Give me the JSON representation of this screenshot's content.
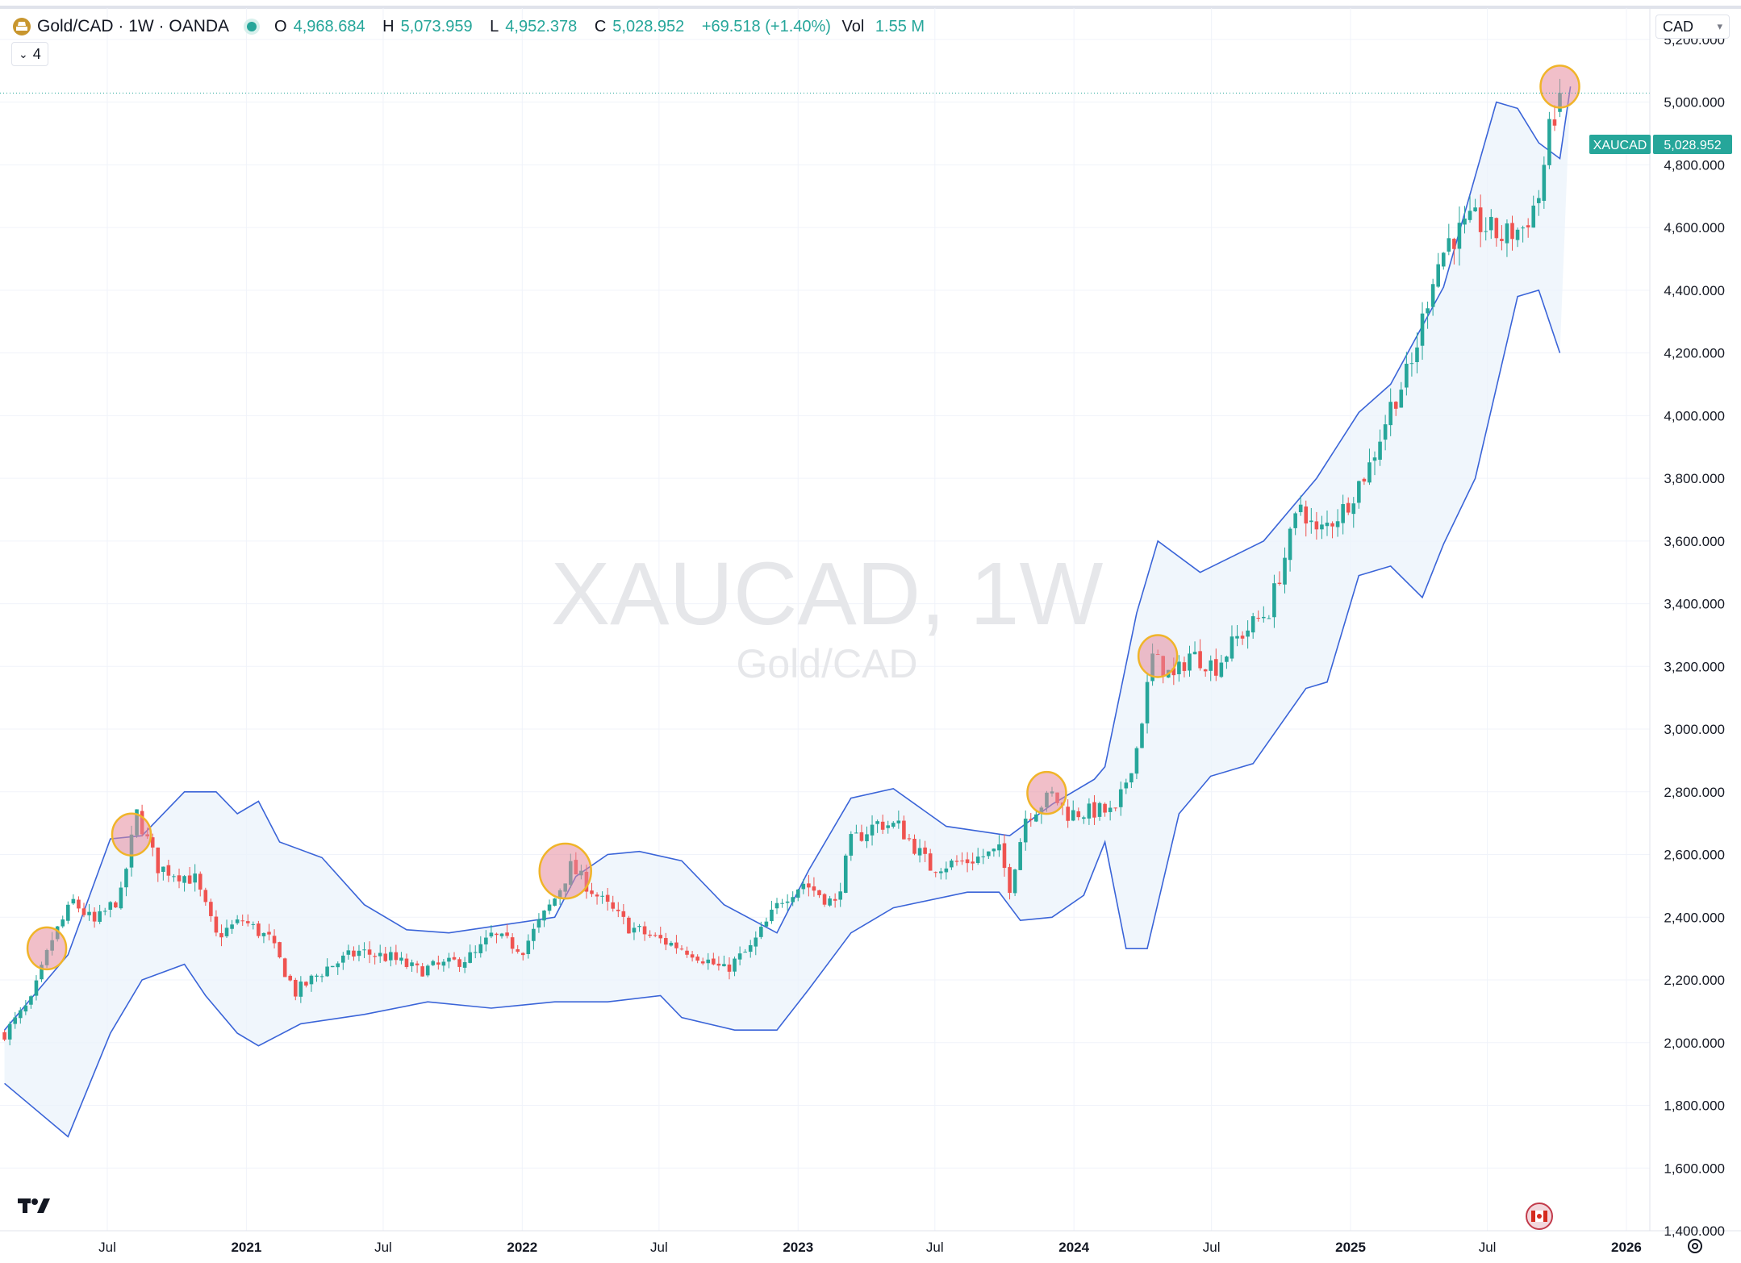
{
  "legend": {
    "title": "Gold/CAD · 1W · OANDA",
    "open_label": "O",
    "open": "4,968.684",
    "high_label": "H",
    "high": "5,073.959",
    "low_label": "L",
    "low": "4,952.378",
    "close_label": "C",
    "close": "5,028.952",
    "change": "+69.518 (+1.40%)",
    "vol_label": "Vol",
    "vol": "1.55 M"
  },
  "indicators_toggle": {
    "count": "4"
  },
  "currency_selector": {
    "value": "CAD"
  },
  "watermark": {
    "symbol": "XAUCAD, 1W",
    "name": "Gold/CAD"
  },
  "price_tag": {
    "symbol": "XAUCAD",
    "price": "5,028.952"
  },
  "colors": {
    "up": "#26a69a",
    "down": "#ef5350",
    "band": "#3a64d8",
    "band_fill": "#eaf2fb",
    "marker_fill": "#e58a9c",
    "marker_ring": "#f0b429",
    "tag_bg": "#26a69a"
  },
  "icons": {
    "symbol": "gold-bars-icon",
    "logo": "tradingview-logo",
    "flag": "canada-flag-icon",
    "settings": "gear-icon"
  },
  "chart_data": {
    "type": "candlestick",
    "title": "XAUCAD, 1W",
    "y_axis": {
      "ticks": [
        "1,400.000",
        "1,600.000",
        "1,800.000",
        "2,000.000",
        "2,200.000",
        "2,400.000",
        "2,600.000",
        "2,800.000",
        "3,000.000",
        "3,200.000",
        "3,400.000",
        "3,600.000",
        "3,800.000",
        "4,000.000",
        "4,200.000",
        "4,400.000",
        "4,600.000",
        "4,800.000",
        "5,000.000",
        "5,200.000"
      ],
      "range": [
        1400,
        5300
      ]
    },
    "x_axis": {
      "ticks": [
        "Jul",
        "2021",
        "Jul",
        "2022",
        "Jul",
        "2023",
        "Jul",
        "2024",
        "Jul",
        "2025",
        "Jul",
        "2026"
      ],
      "range": [
        "2020-02-10",
        "2026-02-01"
      ]
    },
    "trend_anchors": [
      {
        "date": "2020-02-16",
        "close": 2030
      },
      {
        "date": "2020-03-22",
        "close": 2130
      },
      {
        "date": "2020-04-19",
        "close": 2330
      },
      {
        "date": "2020-05-17",
        "close": 2450
      },
      {
        "date": "2020-06-14",
        "close": 2380
      },
      {
        "date": "2020-07-19",
        "close": 2470
      },
      {
        "date": "2020-08-09",
        "close": 2730
      },
      {
        "date": "2020-09-06",
        "close": 2560
      },
      {
        "date": "2020-10-25",
        "close": 2520
      },
      {
        "date": "2020-11-22",
        "close": 2340
      },
      {
        "date": "2020-12-27",
        "close": 2390
      },
      {
        "date": "2021-01-31",
        "close": 2330
      },
      {
        "date": "2021-03-07",
        "close": 2160
      },
      {
        "date": "2021-04-18",
        "close": 2240
      },
      {
        "date": "2021-05-30",
        "close": 2290
      },
      {
        "date": "2021-07-11",
        "close": 2270
      },
      {
        "date": "2021-08-15",
        "close": 2230
      },
      {
        "date": "2021-09-26",
        "close": 2250
      },
      {
        "date": "2021-10-31",
        "close": 2280
      },
      {
        "date": "2021-11-21",
        "close": 2340
      },
      {
        "date": "2022-01-02",
        "close": 2300
      },
      {
        "date": "2022-02-13",
        "close": 2460
      },
      {
        "date": "2022-03-06",
        "close": 2560
      },
      {
        "date": "2022-04-17",
        "close": 2450
      },
      {
        "date": "2022-05-22",
        "close": 2370
      },
      {
        "date": "2022-06-19",
        "close": 2340
      },
      {
        "date": "2022-08-14",
        "close": 2290
      },
      {
        "date": "2022-09-25",
        "close": 2230
      },
      {
        "date": "2022-10-30",
        "close": 2300
      },
      {
        "date": "2022-12-11",
        "close": 2460
      },
      {
        "date": "2023-01-08",
        "close": 2510
      },
      {
        "date": "2023-02-19",
        "close": 2440
      },
      {
        "date": "2023-03-12",
        "close": 2640
      },
      {
        "date": "2023-04-16",
        "close": 2700
      },
      {
        "date": "2023-05-14",
        "close": 2690
      },
      {
        "date": "2023-06-25",
        "close": 2560
      },
      {
        "date": "2023-08-13",
        "close": 2580
      },
      {
        "date": "2023-09-24",
        "close": 2610
      },
      {
        "date": "2023-10-08",
        "close": 2500
      },
      {
        "date": "2023-10-29",
        "close": 2720
      },
      {
        "date": "2023-12-03",
        "close": 2790
      },
      {
        "date": "2023-12-24",
        "close": 2730
      },
      {
        "date": "2024-02-04",
        "close": 2740
      },
      {
        "date": "2024-02-25",
        "close": 2730
      },
      {
        "date": "2024-03-24",
        "close": 2940
      },
      {
        "date": "2024-04-14",
        "close": 3230
      },
      {
        "date": "2024-05-12",
        "close": 3160
      },
      {
        "date": "2024-06-02",
        "close": 3240
      },
      {
        "date": "2024-07-07",
        "close": 3200
      },
      {
        "date": "2024-08-04",
        "close": 3290
      },
      {
        "date": "2024-09-15",
        "close": 3380
      },
      {
        "date": "2024-10-27",
        "close": 3720
      },
      {
        "date": "2024-11-17",
        "close": 3620
      },
      {
        "date": "2024-12-22",
        "close": 3700
      },
      {
        "date": "2025-01-26",
        "close": 3840
      },
      {
        "date": "2025-02-23",
        "close": 4030
      },
      {
        "date": "2025-03-23",
        "close": 4160
      },
      {
        "date": "2025-04-20",
        "close": 4450
      },
      {
        "date": "2025-05-11",
        "close": 4560
      },
      {
        "date": "2025-06-15",
        "close": 4620
      },
      {
        "date": "2025-07-20",
        "close": 4570
      },
      {
        "date": "2025-08-17",
        "close": 4600
      },
      {
        "date": "2025-09-07",
        "close": 4700
      },
      {
        "date": "2025-09-21",
        "close": 4900
      },
      {
        "date": "2025-10-05",
        "close": 5029
      }
    ],
    "bollinger": {
      "upper": [
        [
          0,
          2040
        ],
        [
          12,
          2280
        ],
        [
          20,
          2650
        ],
        [
          26,
          2660
        ],
        [
          34,
          2800
        ],
        [
          40,
          2800
        ],
        [
          44,
          2730
        ],
        [
          48,
          2770
        ],
        [
          52,
          2640
        ],
        [
          60,
          2590
        ],
        [
          68,
          2440
        ],
        [
          76,
          2360
        ],
        [
          84,
          2350
        ],
        [
          96,
          2380
        ],
        [
          104,
          2400
        ],
        [
          108,
          2530
        ],
        [
          114,
          2600
        ],
        [
          120,
          2610
        ],
        [
          128,
          2580
        ],
        [
          136,
          2440
        ],
        [
          146,
          2350
        ],
        [
          152,
          2550
        ],
        [
          160,
          2780
        ],
        [
          168,
          2810
        ],
        [
          178,
          2690
        ],
        [
          190,
          2660
        ],
        [
          198,
          2760
        ],
        [
          206,
          2840
        ],
        [
          208,
          2880
        ],
        [
          214,
          3370
        ],
        [
          218,
          3600
        ],
        [
          226,
          3500
        ],
        [
          238,
          3600
        ],
        [
          248,
          3800
        ],
        [
          256,
          4010
        ],
        [
          262,
          4100
        ],
        [
          272,
          4410
        ],
        [
          282,
          5000
        ],
        [
          286,
          4980
        ],
        [
          290,
          4870
        ],
        [
          294,
          4820
        ],
        [
          296,
          5050
        ]
      ],
      "lower": [
        [
          0,
          1870
        ],
        [
          12,
          1700
        ],
        [
          20,
          2030
        ],
        [
          26,
          2200
        ],
        [
          34,
          2250
        ],
        [
          38,
          2150
        ],
        [
          44,
          2030
        ],
        [
          48,
          1990
        ],
        [
          56,
          2060
        ],
        [
          68,
          2090
        ],
        [
          80,
          2130
        ],
        [
          92,
          2110
        ],
        [
          104,
          2130
        ],
        [
          114,
          2130
        ],
        [
          124,
          2150
        ],
        [
          128,
          2080
        ],
        [
          138,
          2040
        ],
        [
          146,
          2040
        ],
        [
          152,
          2170
        ],
        [
          160,
          2350
        ],
        [
          168,
          2430
        ],
        [
          182,
          2480
        ],
        [
          188,
          2480
        ],
        [
          192,
          2390
        ],
        [
          198,
          2400
        ],
        [
          204,
          2470
        ],
        [
          208,
          2640
        ],
        [
          212,
          2300
        ],
        [
          216,
          2300
        ],
        [
          222,
          2730
        ],
        [
          228,
          2850
        ],
        [
          236,
          2890
        ],
        [
          246,
          3130
        ],
        [
          250,
          3150
        ],
        [
          256,
          3490
        ],
        [
          262,
          3520
        ],
        [
          268,
          3420
        ],
        [
          272,
          3590
        ],
        [
          278,
          3800
        ],
        [
          286,
          4380
        ],
        [
          290,
          4400
        ],
        [
          294,
          4200
        ]
      ]
    },
    "highlight_markers": [
      "2020-04-12",
      "2020-08-02",
      "2022-02-27",
      "2023-11-26",
      "2024-04-21",
      "2025-10-05"
    ],
    "last_close": 5028.952
  }
}
